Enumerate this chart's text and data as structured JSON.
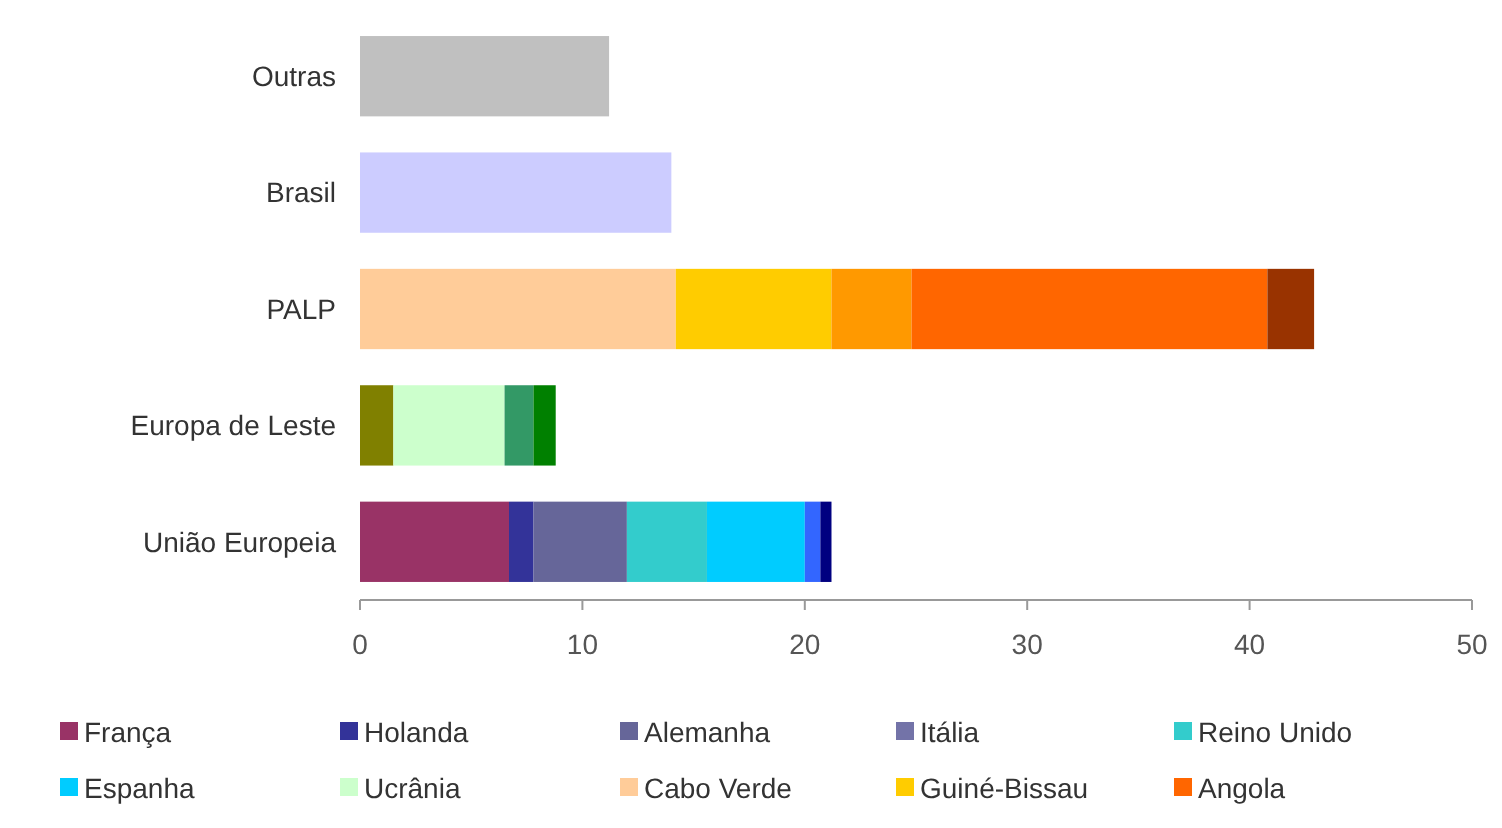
{
  "chart_data": {
    "type": "bar",
    "orientation": "horizontal",
    "stacked": true,
    "categories": [
      "Outras",
      "Brasil",
      "PALP",
      "Europa de Leste",
      "União Europeia"
    ],
    "xlim": [
      0,
      50
    ],
    "xticks": [
      0,
      10,
      20,
      30,
      40,
      50
    ],
    "grid": false,
    "legend": "bottom",
    "series": [
      {
        "name": "França",
        "color": "#993366",
        "values": [
          null,
          null,
          null,
          null,
          6.7
        ]
      },
      {
        "name": "Holanda",
        "color": "#333399",
        "values": [
          null,
          null,
          null,
          null,
          1.1
        ]
      },
      {
        "name": "Alemanha",
        "color": "#666699",
        "values": [
          null,
          null,
          null,
          null,
          4.2
        ]
      },
      {
        "name": "Itália",
        "color": "#7373a8",
        "values": [
          null,
          null,
          null,
          null,
          null
        ]
      },
      {
        "name": "Reino Unido",
        "color": "#33cccc",
        "values": [
          null,
          null,
          null,
          null,
          3.6
        ]
      },
      {
        "name": "Espanha",
        "color": "#00ccff",
        "values": [
          null,
          null,
          null,
          null,
          4.4
        ]
      },
      {
        "color": "#808000",
        "values": [
          null,
          null,
          null,
          1.5,
          null
        ]
      },
      {
        "name": "Ucrânia",
        "color": "#ccffcc",
        "values": [
          null,
          null,
          null,
          5.0,
          null
        ]
      },
      {
        "color": "#339966",
        "values": [
          null,
          null,
          null,
          1.3,
          null
        ]
      },
      {
        "color": "#008000",
        "values": [
          null,
          null,
          null,
          1.0,
          null
        ]
      },
      {
        "name": "Cabo Verde",
        "color": "#ffcc99",
        "values": [
          null,
          null,
          14.2,
          null,
          null
        ]
      },
      {
        "name": "Guiné-Bissau",
        "color": "#ffcc00",
        "values": [
          null,
          null,
          7.0,
          null,
          null
        ]
      },
      {
        "color": "#ff9900",
        "values": [
          null,
          null,
          3.6,
          null,
          null
        ]
      },
      {
        "name": "Angola",
        "color": "#ff6600",
        "values": [
          null,
          null,
          16.0,
          null,
          null
        ]
      },
      {
        "color": "#993300",
        "values": [
          null,
          null,
          2.1,
          null,
          null
        ]
      },
      {
        "color": "#3366ff",
        "values": [
          null,
          null,
          null,
          null,
          0.7
        ]
      },
      {
        "color": "#000080",
        "values": [
          null,
          null,
          null,
          null,
          0.5
        ]
      },
      {
        "color": "#ccccff",
        "values": [
          null,
          14.0,
          null,
          null,
          null
        ]
      },
      {
        "color": "#c0c0c0",
        "values": [
          11.2,
          null,
          null,
          null,
          null
        ]
      }
    ]
  }
}
